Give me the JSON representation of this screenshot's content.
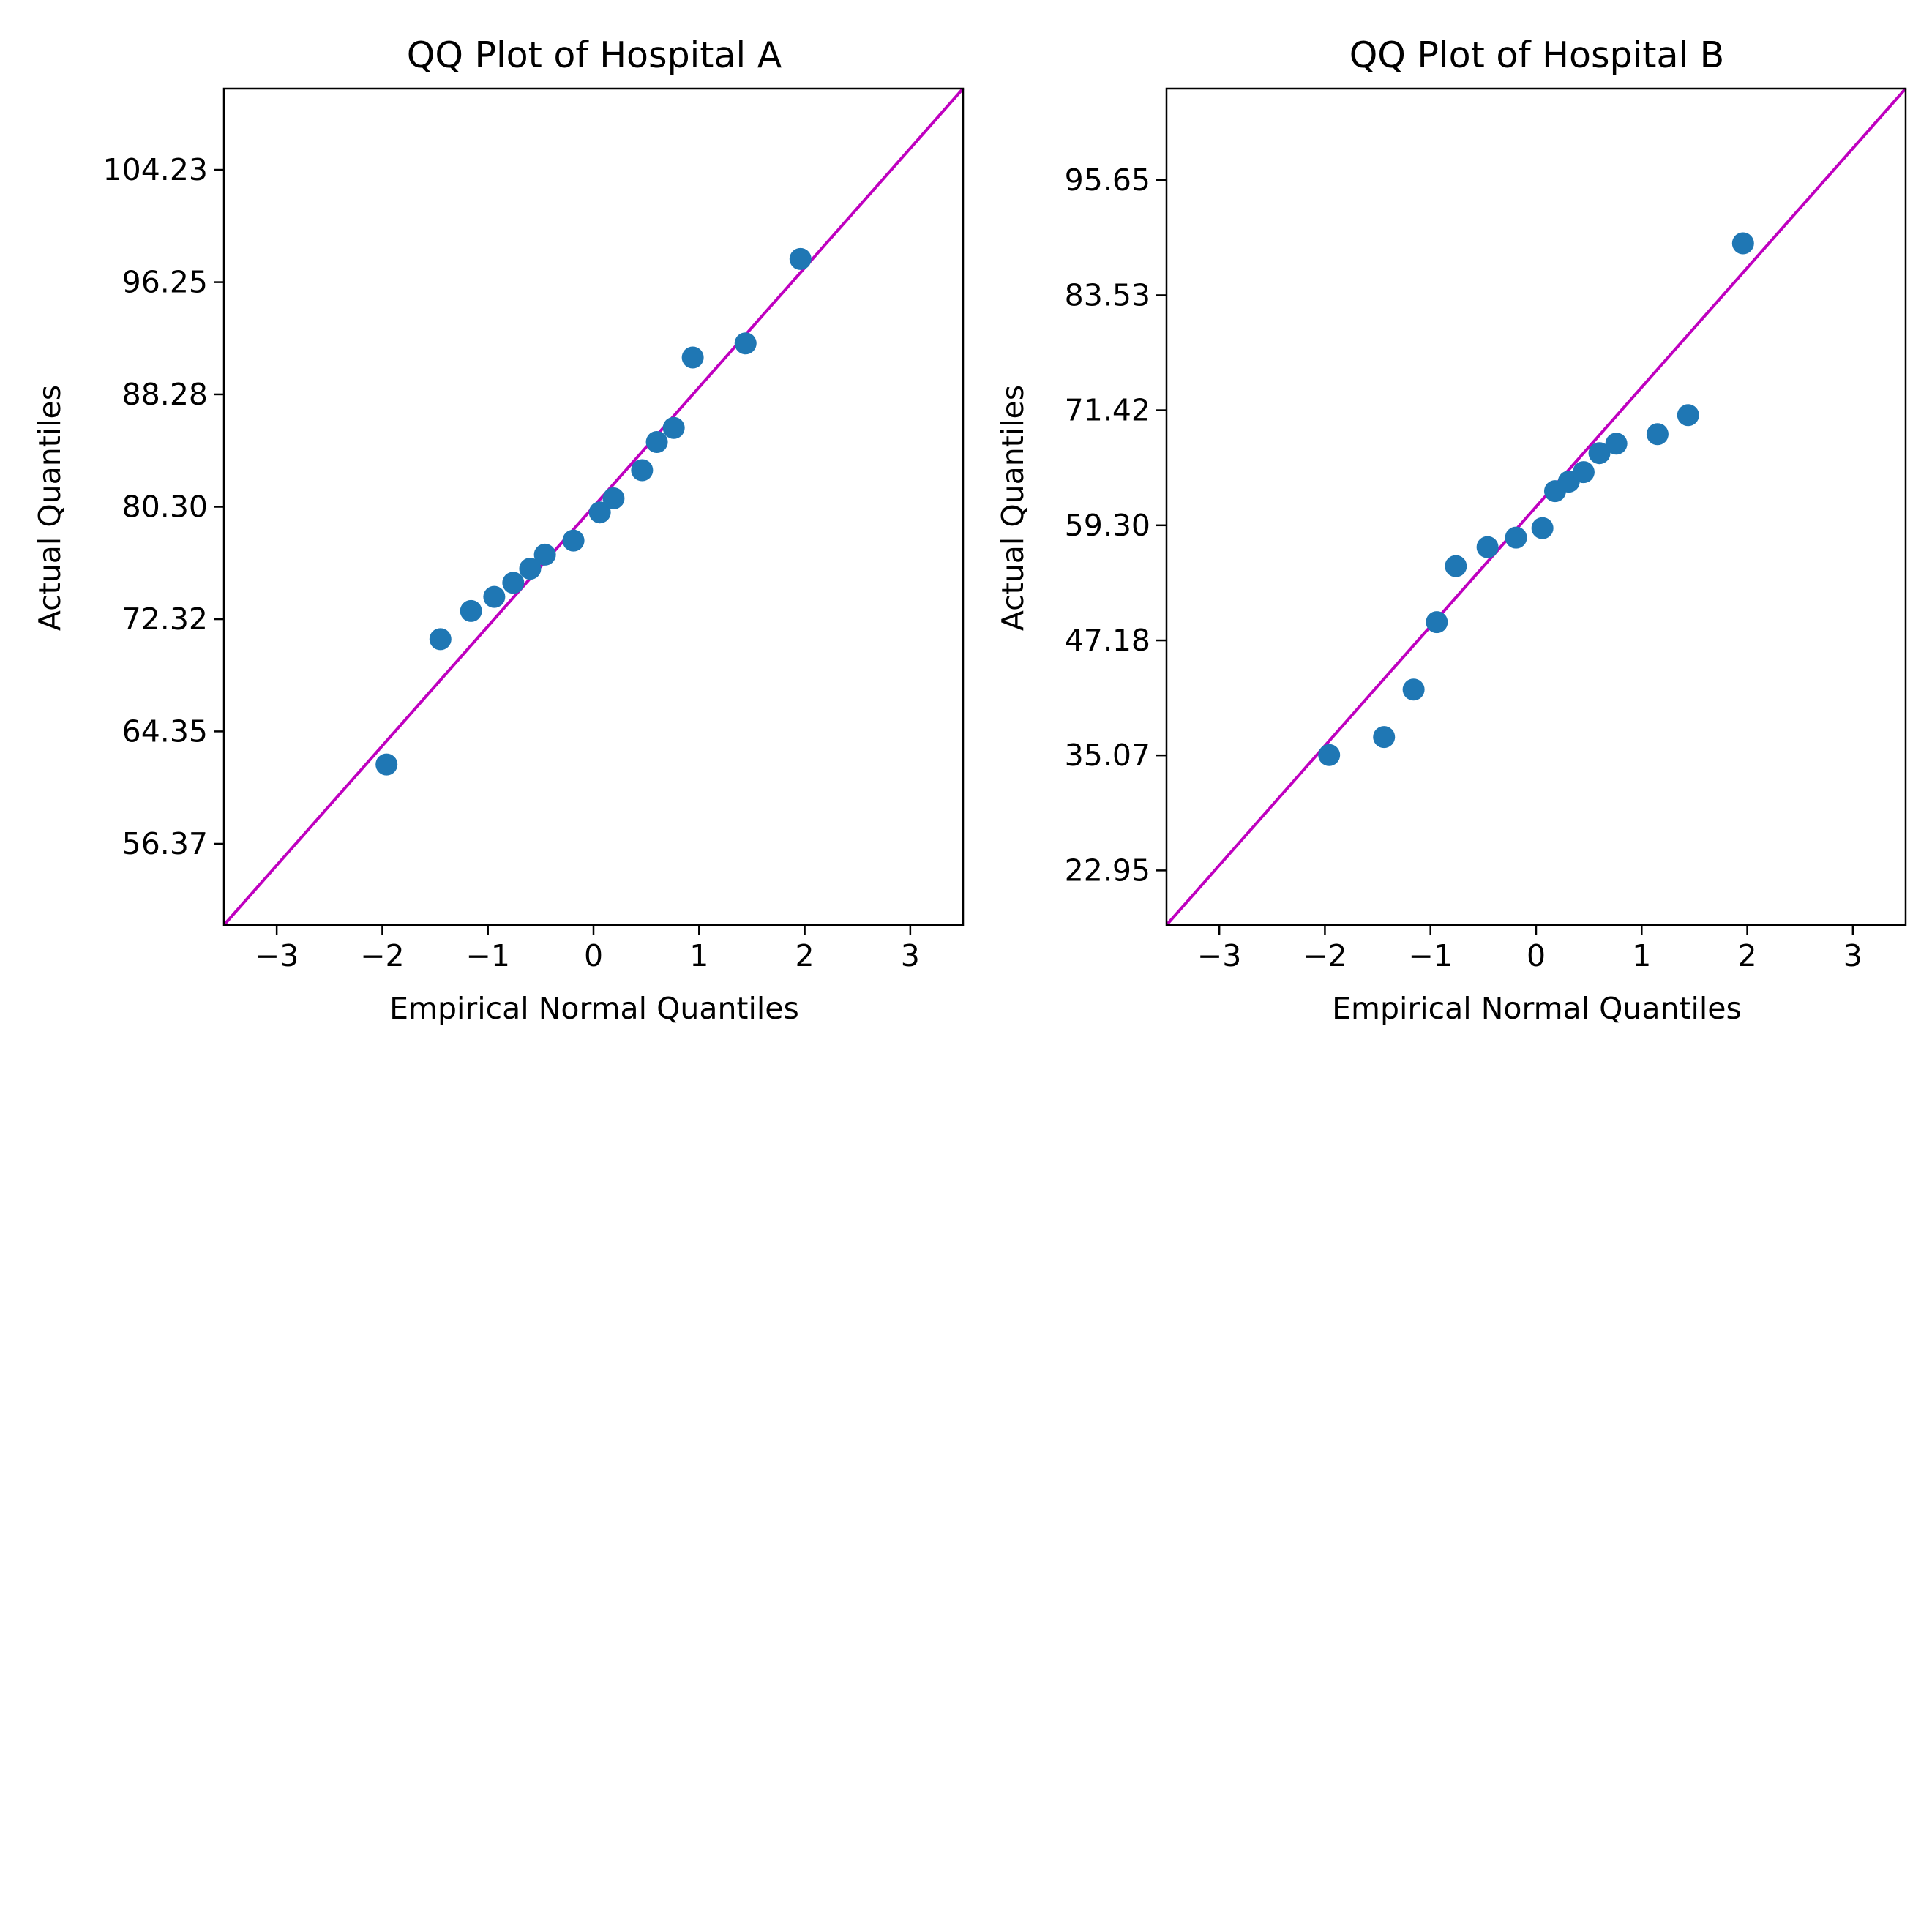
{
  "chart_data": [
    {
      "type": "scatter",
      "title": "QQ Plot of Hospital A",
      "xlabel": "Empirical Normal Quantiles",
      "ylabel": "Actual Quantiles",
      "xlim": [
        -3.5,
        3.5
      ],
      "ylim": [
        50.6,
        110.0
      ],
      "xticks": [
        -3,
        -2,
        -1,
        0,
        1,
        2,
        3
      ],
      "xtick_labels": [
        "−3",
        "−2",
        "−1",
        "0",
        "1",
        "2",
        "3"
      ],
      "yticks": [
        56.37,
        64.35,
        72.32,
        80.3,
        88.28,
        96.25,
        104.23
      ],
      "ytick_labels": [
        "56.37",
        "64.35",
        "72.32",
        "80.30",
        "88.28",
        "96.25",
        "104.23"
      ],
      "reference_line": {
        "from": [
          -3.5,
          50.6
        ],
        "to": [
          3.5,
          110.0
        ]
      },
      "series": [
        {
          "x": [
            -1.96,
            -1.45,
            -1.16,
            -0.94,
            -0.76,
            -0.6,
            -0.46,
            -0.19,
            0.06,
            0.19,
            0.46,
            0.6,
            0.76,
            0.94,
            1.44,
            1.96
          ],
          "y": [
            62.0,
            70.9,
            72.9,
            73.9,
            74.9,
            75.9,
            76.9,
            77.9,
            79.9,
            80.9,
            82.9,
            84.9,
            85.9,
            90.9,
            91.9,
            97.9
          ]
        }
      ],
      "colors": {
        "points": "#1f77b4",
        "line": "#bf00bf"
      },
      "grid": false
    },
    {
      "type": "scatter",
      "title": "QQ Plot of Hospital B",
      "xlabel": "Empirical Normal Quantiles",
      "ylabel": "Actual Quantiles",
      "xlim": [
        -3.5,
        3.5
      ],
      "ylim": [
        17.2,
        105.3
      ],
      "xticks": [
        -3,
        -2,
        -1,
        0,
        1,
        2,
        3
      ],
      "xtick_labels": [
        "−3",
        "−2",
        "−1",
        "0",
        "1",
        "2",
        "3"
      ],
      "yticks": [
        22.95,
        35.07,
        47.18,
        59.3,
        71.42,
        83.53,
        95.65
      ],
      "ytick_labels": [
        "22.95",
        "35.07",
        "47.18",
        "59.30",
        "71.42",
        "83.53",
        "95.65"
      ],
      "reference_line": {
        "from": [
          -3.5,
          17.2
        ],
        "to": [
          3.5,
          105.3
        ]
      },
      "series": [
        {
          "x": [
            -1.96,
            -1.44,
            -1.16,
            -0.94,
            -0.76,
            -0.46,
            -0.19,
            0.06,
            0.18,
            0.31,
            0.45,
            0.6,
            0.76,
            1.15,
            1.44,
            1.96
          ],
          "y": [
            35.1,
            37.0,
            42.0,
            49.1,
            55.0,
            57.0,
            58.0,
            59.0,
            62.9,
            63.9,
            64.9,
            66.9,
            67.9,
            68.9,
            70.9,
            89.0
          ]
        }
      ],
      "colors": {
        "points": "#1f77b4",
        "line": "#bf00bf"
      },
      "grid": false
    }
  ]
}
